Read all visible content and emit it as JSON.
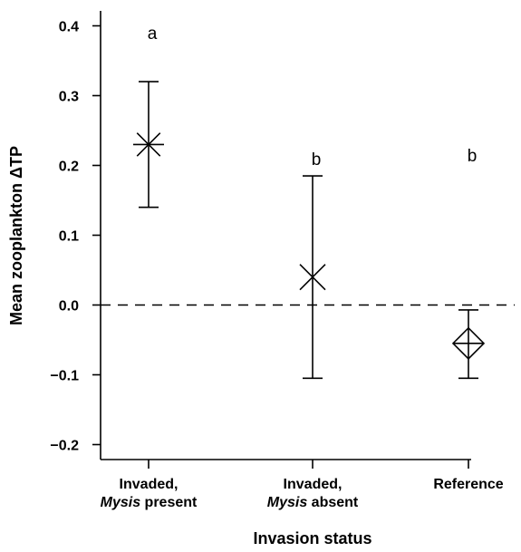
{
  "chart_data": {
    "type": "scatter",
    "title": "",
    "xlabel": "Invasion status",
    "ylabel": "Mean zooplankton ΔTP",
    "ylim": [
      -0.25,
      0.42
    ],
    "yticks": [
      0.4,
      0.3,
      0.2,
      0.1,
      0.0,
      -0.1,
      -0.2
    ],
    "ytick_labels": [
      "0.4",
      "0.3",
      "0.2",
      "0.1",
      "0.0",
      "−0.1",
      "−0.2"
    ],
    "reference_line_y": 0.0,
    "categories": [
      {
        "line1": "Invaded,",
        "line2_italic": "Mysis",
        "line2_rest": " present"
      },
      {
        "line1": "Invaded,",
        "line2_italic": "Mysis",
        "line2_rest": " absent"
      },
      {
        "line1": "Reference",
        "line2_italic": "",
        "line2_rest": ""
      }
    ],
    "points": [
      {
        "mean": 0.23,
        "lower": 0.14,
        "upper": 0.32,
        "marker": "asterisk",
        "letter": "a",
        "letter_y": 0.39
      },
      {
        "mean": 0.04,
        "lower": -0.105,
        "upper": 0.185,
        "marker": "cross",
        "letter": "b",
        "letter_y": 0.21
      },
      {
        "mean": -0.055,
        "lower": -0.105,
        "upper": -0.007,
        "marker": "diamond-plus",
        "letter": "b",
        "letter_y": 0.215
      }
    ],
    "grid": false,
    "legend": "none"
  }
}
